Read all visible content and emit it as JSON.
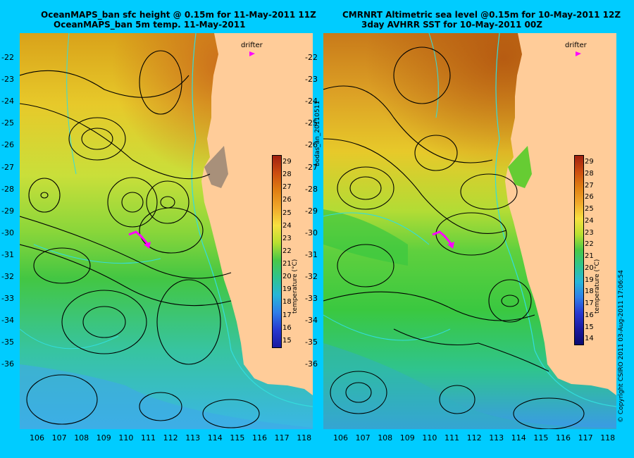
{
  "titles": {
    "left_line1": "OceanMAPS_ban sfc height @ 0.15m for 11-May-2011 11Z",
    "left_line2": "OceanMAPS_ban 5m temp. 11-May-2011",
    "right_line1": "CMRNRT Altimetric sea level  @0.15m  for 10-May-2011 12Z",
    "right_line2": "3day AVHRR SST for 10-May-2011 00Z"
  },
  "latitude_labels": [
    "-22",
    "-23",
    "-24",
    "-25",
    "-26",
    "-27",
    "-28",
    "-29",
    "-30",
    "-31",
    "-32",
    "-33",
    "-34",
    "-35",
    "-36"
  ],
  "longitude_labels": [
    "106",
    "107",
    "108",
    "109",
    "110",
    "111",
    "112",
    "113",
    "114",
    "115",
    "116",
    "117",
    "118"
  ],
  "drifter_label": "drifter",
  "colorbar_left": {
    "title": "temperature (°C)",
    "ticks": [
      "29",
      "28",
      "27",
      "26",
      "25",
      "24",
      "23",
      "22",
      "21",
      "20",
      "19",
      "18",
      "17",
      "16",
      "15"
    ]
  },
  "colorbar_right": {
    "title": "temperature (°C)",
    "ticks": [
      "29",
      "28",
      "27",
      "26",
      "25",
      "24",
      "23",
      "22",
      "21",
      "20",
      "19",
      "18",
      "17",
      "16",
      "15",
      "14"
    ]
  },
  "side_text_left": "bodas_an_20110511",
  "side_text_right": "© Copyright CSIRO 2011   03-Aug-2011 17:06:54",
  "colors": {
    "background": "#00ccff",
    "land": "#ffcc99",
    "contour": "#000000",
    "bathymetry": "#33dddd",
    "drifter": "#ff00ff"
  },
  "map": {
    "lon_range": [
      105.7,
      118.3
    ],
    "lat_range": [
      -36.6,
      -21.5
    ]
  }
}
